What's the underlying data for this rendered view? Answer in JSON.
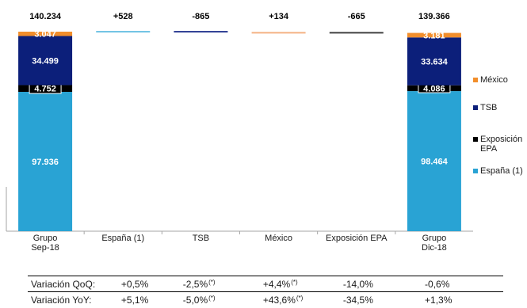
{
  "chart_data": {
    "type": "waterfall",
    "categories": [
      "Grupo\nSep-18",
      "España (1)",
      "TSB",
      "México",
      "Exposición EPA",
      "Grupo\nDic-18"
    ],
    "totals_labels": [
      "140.234",
      "+528",
      "-865",
      "+134",
      "-665",
      "139.366"
    ],
    "stacks": {
      "Grupo Sep-18": [
        {
          "series": "España (1)",
          "value": 97936,
          "label": "97.936"
        },
        {
          "series": "Exposición EPA",
          "value": 4752,
          "label": "4.752"
        },
        {
          "series": "TSB",
          "value": 34499,
          "label": "34.499"
        },
        {
          "series": "México",
          "value": 3047,
          "label": "3.047"
        }
      ],
      "Grupo Dic-18": [
        {
          "series": "España (1)",
          "value": 98464,
          "label": "98.464"
        },
        {
          "series": "Exposición EPA",
          "value": 4086,
          "label": "4.086"
        },
        {
          "series": "TSB",
          "value": 33634,
          "label": "33.634"
        },
        {
          "series": "México",
          "value": 3181,
          "label": "3.181"
        }
      ]
    },
    "deltas": [
      {
        "category": "España (1)",
        "series": "España (1)",
        "value": 528
      },
      {
        "category": "TSB",
        "series": "TSB",
        "value": -865
      },
      {
        "category": "México",
        "series": "México",
        "value": 134
      },
      {
        "category": "Exposición EPA",
        "series": "Exposición EPA",
        "value": -665
      }
    ],
    "ylim": [
      0,
      140234
    ],
    "grid": false,
    "legend_position": "right"
  },
  "legend": [
    {
      "name": "México",
      "color": "#f28e2b"
    },
    {
      "name": "TSB",
      "color": "#0c1f7a"
    },
    {
      "name": "Exposición\nEPA",
      "color": "#000000"
    },
    {
      "name": "España (1)",
      "color": "#29a3d4"
    }
  ],
  "colors": {
    "espana": "#29a3d4",
    "epa": "#000000",
    "tsb": "#0c1f7a",
    "mexico": "#f28e2b",
    "mexico_delta": "#f4b183",
    "espana_delta": "#6fc3e4",
    "tsb_delta": "#2e3e94",
    "epa_delta": "#404040",
    "axis": "#a6a6a6",
    "label_dark": "#ffffff"
  },
  "variation_table": {
    "rows": [
      {
        "label": "Variación QoQ:",
        "values": [
          {
            "text": "+0,5%",
            "note": ""
          },
          {
            "text": "-2,5%",
            "note": "(*)"
          },
          {
            "text": "+4,4%",
            "note": "(*)"
          },
          {
            "text": "-14,0%",
            "note": ""
          },
          {
            "text": "-0,6%",
            "note": ""
          }
        ]
      },
      {
        "label": "Variación YoY:",
        "values": [
          {
            "text": "+5,1%",
            "note": ""
          },
          {
            "text": "-5,0%",
            "note": "(*)"
          },
          {
            "text": "+43,6%",
            "note": "(*)"
          },
          {
            "text": "-34,5%",
            "note": ""
          },
          {
            "text": "+1,3%",
            "note": ""
          }
        ]
      }
    ]
  }
}
